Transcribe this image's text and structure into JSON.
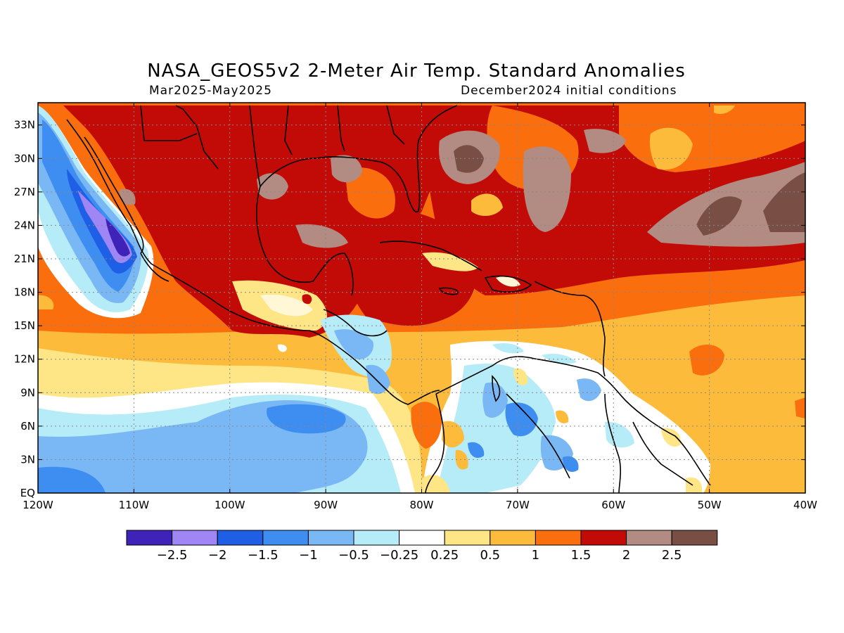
{
  "title": "NASA_GEOS5v2 2-Meter Air Temp. Standard Anomalies",
  "subtitle_left": "Mar2025-May2025",
  "subtitle_right": "December2024 initial conditions",
  "map": {
    "region": "Gulf of Mexico / Caribbean / Central America",
    "lon_range": [
      -120,
      -40
    ],
    "lat_range": [
      0,
      35
    ],
    "grid": "dotted",
    "lat_ticks": [
      "33N",
      "30N",
      "27N",
      "24N",
      "21N",
      "18N",
      "15N",
      "12N",
      "9N",
      "6N",
      "3N",
      "EQ"
    ],
    "lon_ticks": [
      "120W",
      "110W",
      "100W",
      "90W",
      "80W",
      "70W",
      "60W",
      "50W",
      "40W"
    ]
  },
  "legend": {
    "labels": [
      "-2.5",
      "-2",
      "-1.5",
      "-1",
      "-0.5",
      "-0.25",
      "0.25",
      "0.5",
      "1",
      "1.5",
      "2",
      "2.5"
    ],
    "colors": [
      "#3f23b8",
      "#a085f5",
      "#1f5fe6",
      "#3d8ef0",
      "#7ab7f5",
      "#b6ecf8",
      "#ffffff",
      "#fee585",
      "#fdbb3b",
      "#fb6e0d",
      "#c20b06",
      "#b28b82",
      "#794f45"
    ]
  }
}
